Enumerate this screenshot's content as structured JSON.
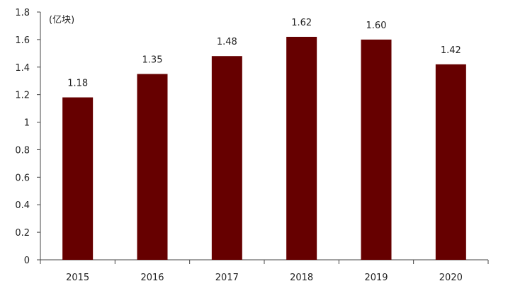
{
  "chart_data": {
    "type": "bar",
    "unit_label": "(亿块)",
    "categories": [
      "2015",
      "2016",
      "2017",
      "2018",
      "2019",
      "2020"
    ],
    "values": [
      1.18,
      1.35,
      1.48,
      1.62,
      1.6,
      1.42
    ],
    "value_labels": [
      "1.18",
      "1.35",
      "1.48",
      "1.62",
      "1.60",
      "1.42"
    ],
    "ylim": [
      0,
      1.8
    ],
    "yticks": [
      0,
      0.2,
      0.4,
      0.6,
      0.8,
      1,
      1.2,
      1.4,
      1.6,
      1.8
    ],
    "ytick_labels": [
      "0",
      "0.2",
      "0.4",
      "0.6",
      "0.8",
      "1",
      "1.2",
      "1.4",
      "1.6",
      "1.8"
    ],
    "bar_color": "#660000",
    "grid": false,
    "legend": "none"
  }
}
